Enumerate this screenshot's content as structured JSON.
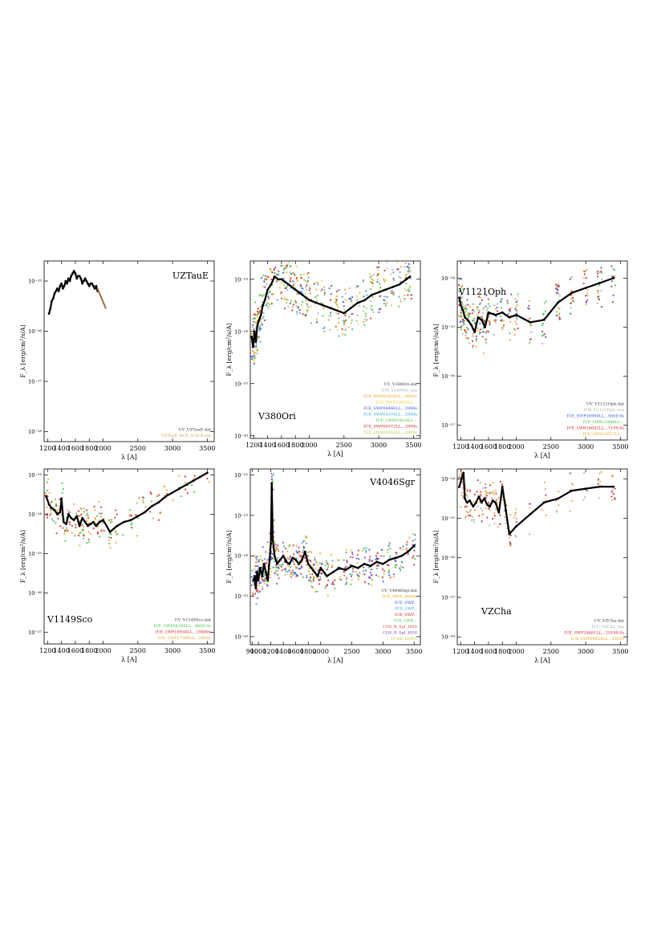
{
  "chart_data": [
    {
      "type": "line",
      "title": "UZTauE",
      "xlabel": "λ [A]",
      "ylabel": "F_λ [erg/cm²/s/A]",
      "xlim": [
        1150,
        3600
      ],
      "ylim_log10": [
        -18.2,
        -14.6
      ],
      "yscale": "log",
      "xticks": [
        1200,
        1400,
        1600,
        1800,
        2000,
        2500,
        3000,
        3500
      ],
      "yticks": [
        {
          "exp": -15,
          "label": "10⁻¹⁵"
        },
        {
          "exp": -16,
          "label": "10⁻¹⁶"
        },
        {
          "exp": -17,
          "label": "10⁻¹⁷"
        },
        {
          "exp": -18,
          "label": "10⁻¹⁸"
        }
      ],
      "legend": [
        {
          "name": "UV_UZTauE.dat",
          "color": "#333333"
        },
        {
          "name": "UZTauE_BCE_0.3CR.dat",
          "color": "#d4a24c"
        }
      ],
      "series": [
        {
          "name": "UV_UZTauE.dat",
          "color": "#000000",
          "width": 2.2,
          "x": [
            1220,
            1240,
            1260,
            1280,
            1300,
            1320,
            1340,
            1360,
            1380,
            1400,
            1420,
            1440,
            1460,
            1480,
            1500,
            1520,
            1540,
            1560,
            1580,
            1600,
            1620,
            1640,
            1660,
            1680,
            1700,
            1720,
            1740,
            1760,
            1780,
            1800,
            1820,
            1840,
            1860,
            1880,
            1900,
            1920
          ],
          "y_log10": [
            -15.65,
            -15.55,
            -15.4,
            -15.35,
            -15.25,
            -15.2,
            -15.15,
            -15.2,
            -15.1,
            -15.05,
            -15.15,
            -15.1,
            -15.0,
            -15.05,
            -14.95,
            -15.0,
            -14.9,
            -14.85,
            -14.8,
            -14.85,
            -14.95,
            -14.9,
            -14.9,
            -14.95,
            -15.05,
            -15.0,
            -14.95,
            -15.0,
            -15.05,
            -15.1,
            -15.05,
            -15.05,
            -15.1,
            -15.15,
            -15.1,
            -15.2
          ]
        },
        {
          "name": "UZTauE_BCE_0.3CR.dat",
          "color": "#a0703a",
          "width": 2.0,
          "x": [
            1920,
            1950,
            1980,
            2010,
            2040
          ],
          "y_log10": [
            -15.15,
            -15.25,
            -15.35,
            -15.45,
            -15.55
          ]
        }
      ]
    },
    {
      "type": "scatter",
      "title": "V380Ori",
      "xlabel": "λ [A]",
      "ylabel": "F_λ [erg/cm²/s/A]",
      "xlim": [
        1150,
        3600
      ],
      "ylim_log10": [
        -16.05,
        -12.65
      ],
      "yscale": "log",
      "xticks": [
        1200,
        1400,
        1600,
        1800,
        2000,
        2500,
        3000,
        3500
      ],
      "yticks": [
        {
          "exp": -13,
          "label": "10⁻¹³"
        },
        {
          "exp": -14,
          "label": "10⁻¹⁴"
        },
        {
          "exp": -15,
          "label": "10⁻¹⁵"
        },
        {
          "exp": -16,
          "label": "10⁻¹⁶"
        }
      ],
      "legend": [
        {
          "name": "UV_V380Ori.dat",
          "color": "#333333"
        },
        {
          "name": "IUE_V380Ori_xxx",
          "color": "#aaaaaa"
        },
        {
          "name": "IUE_SWP03628LL...4850s",
          "color": "#e8a020"
        },
        {
          "name": "IUE_SWP03698LL...",
          "color": "#f0d040"
        },
        {
          "name": "IUE_SWP04486LL...2999s",
          "color": "#3050d0"
        },
        {
          "name": "IUE_SWP05376LL...2999s",
          "color": "#30a0e0"
        },
        {
          "name": "IUE_LWR03614LL...",
          "color": "#40c040"
        },
        {
          "name": "IUE_SWP09372LL...2999s",
          "color": "#d02020"
        },
        {
          "name": "IUE_LWR01419LL...2999s",
          "color": "#c0c040"
        }
      ],
      "series": [
        {
          "name": "UV_V380Ori.dat",
          "color": "#000000",
          "width": 2.2,
          "x": [
            1170,
            1190,
            1210,
            1230,
            1250,
            1270,
            1300,
            1330,
            1360,
            1400,
            1450,
            1500,
            1550,
            1600,
            1650,
            1700,
            1750,
            1800,
            1850,
            1900,
            1950,
            2000,
            2100,
            2200,
            2300,
            2400,
            2500,
            2600,
            2700,
            2800,
            2900,
            3000,
            3100,
            3200,
            3300,
            3400,
            3450
          ],
          "y_log10": [
            -14.1,
            -14.3,
            -14.0,
            -14.2,
            -13.9,
            -13.8,
            -13.7,
            -13.5,
            -13.4,
            -13.2,
            -13.1,
            -12.95,
            -13.0,
            -13.0,
            -13.05,
            -13.1,
            -13.15,
            -13.2,
            -13.25,
            -13.3,
            -13.35,
            -13.4,
            -13.45,
            -13.5,
            -13.55,
            -13.6,
            -13.65,
            -13.55,
            -13.45,
            -13.4,
            -13.3,
            -13.25,
            -13.2,
            -13.15,
            -13.1,
            -13.0,
            -12.95
          ]
        }
      ]
    },
    {
      "type": "scatter",
      "title": "V1121Oph",
      "xlabel": "λ [A]",
      "ylabel": "F_λ [erg/cm²/s/A]",
      "xlim": [
        1150,
        3600
      ],
      "ylim_log10": [
        -17.3,
        -13.65
      ],
      "yscale": "log",
      "xticks": [
        1200,
        1400,
        1600,
        1800,
        2000,
        2500,
        3000,
        3500
      ],
      "yticks": [
        {
          "exp": -14,
          "label": "10⁻¹⁴"
        },
        {
          "exp": -15,
          "label": "10⁻¹⁵"
        },
        {
          "exp": -16,
          "label": "10⁻¹⁶"
        },
        {
          "exp": -17,
          "label": "10⁻¹⁷"
        }
      ],
      "legend": [
        {
          "name": "UV_V1121Oph.dat",
          "color": "#333333"
        },
        {
          "name": "IUE_V1121Oph_xxx",
          "color": "#aaaaaa"
        },
        {
          "name": "IUE_SWP16990LL...5659.0s",
          "color": "#3050d0"
        },
        {
          "name": "IUE_LWR13486LL...",
          "color": "#40c040"
        },
        {
          "name": "IUE_LWR16642LL...7199.0s",
          "color": "#d02020"
        },
        {
          "name": "IUE_LWR13557LL...",
          "color": "#e8a020"
        }
      ],
      "series": [
        {
          "name": "UV_V1121Oph.dat",
          "color": "#000000",
          "width": 2.2,
          "x": [
            1180,
            1200,
            1230,
            1260,
            1300,
            1350,
            1400,
            1450,
            1500,
            1550,
            1600,
            1700,
            1800,
            1900,
            2000,
            2200,
            2400,
            2600,
            2800,
            3000,
            3200,
            3400
          ],
          "y_log10": [
            -14.4,
            -14.55,
            -14.65,
            -14.8,
            -14.85,
            -14.95,
            -15.1,
            -14.8,
            -14.85,
            -15.0,
            -14.7,
            -14.75,
            -14.7,
            -14.8,
            -14.75,
            -14.9,
            -14.85,
            -14.5,
            -14.3,
            -14.2,
            -14.1,
            -14.0
          ]
        }
      ]
    },
    {
      "type": "scatter",
      "title": "V1149Sco",
      "xlabel": "λ [A]",
      "ylabel": "F_λ [erg/cm²/s/A]",
      "xlim": [
        1150,
        3600
      ],
      "ylim_log10": [
        -17.3,
        -12.85
      ],
      "yscale": "log",
      "xticks": [
        1200,
        1400,
        1600,
        1800,
        2000,
        2500,
        3000,
        3500
      ],
      "yticks": [
        {
          "exp": -13,
          "label": "10⁻¹³"
        },
        {
          "exp": -14,
          "label": "10⁻¹⁴"
        },
        {
          "exp": -15,
          "label": "10⁻¹⁵"
        },
        {
          "exp": -16,
          "label": "10⁻¹⁶"
        },
        {
          "exp": -17,
          "label": "10⁻¹⁷"
        }
      ],
      "legend": [
        {
          "name": "UV_V1149Sco.dat",
          "color": "#333333"
        },
        {
          "name": "IUE_SWP04295LL...9600.0s",
          "color": "#40c040"
        },
        {
          "name": "IUE_LWP19858LL...10800s",
          "color": "#d02020"
        },
        {
          "name": "IUE_LWP27289LL...2400s",
          "color": "#e8a020"
        }
      ],
      "series": [
        {
          "name": "UV_V1149Sco.dat",
          "color": "#000000",
          "width": 2.2,
          "x": [
            1180,
            1220,
            1260,
            1300,
            1340,
            1380,
            1400,
            1430,
            1470,
            1500,
            1540,
            1580,
            1620,
            1660,
            1700,
            1740,
            1780,
            1820,
            1860,
            1900,
            1950,
            2000,
            2100,
            2200,
            2300,
            2400,
            2500,
            2600,
            2700,
            2800,
            2900,
            3000,
            3100,
            3200,
            3300,
            3400,
            3500
          ],
          "y_log10": [
            -13.55,
            -13.75,
            -13.85,
            -13.9,
            -14.0,
            -13.95,
            -13.6,
            -14.2,
            -14.25,
            -14.0,
            -14.1,
            -14.15,
            -14.05,
            -14.3,
            -14.1,
            -14.2,
            -14.3,
            -14.25,
            -14.2,
            -14.3,
            -14.2,
            -14.15,
            -14.45,
            -14.3,
            -14.2,
            -14.15,
            -14.05,
            -13.95,
            -13.8,
            -13.7,
            -13.55,
            -13.45,
            -13.35,
            -13.25,
            -13.15,
            -13.05,
            -12.95
          ]
        }
      ]
    },
    {
      "type": "scatter",
      "title": "V4046Sgr",
      "xlabel": "λ [A]",
      "ylabel": "F_λ [erg/cm²/s/A]",
      "xlim": [
        870,
        3600
      ],
      "ylim_log10": [
        -16.2,
        -11.85
      ],
      "yscale": "log",
      "xticks": [
        900,
        1000,
        1200,
        1400,
        1600,
        1800,
        2000,
        2500,
        3000,
        3500
      ],
      "yticks": [
        {
          "exp": -12,
          "label": "10⁻¹²"
        },
        {
          "exp": -13,
          "label": "10⁻¹³"
        },
        {
          "exp": -14,
          "label": "10⁻¹⁴"
        },
        {
          "exp": -15,
          "label": "10⁻¹⁵"
        },
        {
          "exp": -16,
          "label": "10⁻¹⁶"
        }
      ],
      "legend": [
        {
          "name": "UV_V4046Sgr.dat",
          "color": "#333333"
        },
        {
          "name": "IUE_SWP...4000s",
          "color": "#e8a020"
        },
        {
          "name": "IUE_SWP...",
          "color": "#3050d0"
        },
        {
          "name": "IUE_LWP...",
          "color": "#30a0e0"
        },
        {
          "name": "IUE_SWP...",
          "color": "#d02020"
        },
        {
          "name": "IUE_LWR...",
          "color": "#40c040"
        },
        {
          "name": "COS_B_SpI_HDS",
          "color": "#e04040"
        },
        {
          "name": "COS_B_SpI_HDS",
          "color": "#8040c0"
        },
        {
          "name": "FUSE_LWRS",
          "color": "#c0c040"
        }
      ],
      "series": [
        {
          "name": "UV_V4046Sgr.dat",
          "color": "#000000",
          "width": 2.2,
          "x": [
            920,
            940,
            960,
            980,
            1000,
            1030,
            1060,
            1090,
            1120,
            1150,
            1180,
            1200,
            1215,
            1230,
            1260,
            1300,
            1350,
            1400,
            1450,
            1500,
            1550,
            1600,
            1650,
            1700,
            1750,
            1800,
            1850,
            1900,
            1950,
            2000,
            2100,
            2200,
            2300,
            2400,
            2500,
            2600,
            2700,
            2800,
            2900,
            3000,
            3100,
            3200,
            3300,
            3400,
            3500
          ],
          "y_log10": [
            -14.6,
            -14.5,
            -14.8,
            -14.4,
            -14.6,
            -14.3,
            -14.5,
            -14.2,
            -14.4,
            -14.6,
            -14.1,
            -13.7,
            -12.2,
            -13.6,
            -14.0,
            -14.2,
            -14.1,
            -14.0,
            -14.15,
            -14.2,
            -14.05,
            -14.1,
            -14.2,
            -14.1,
            -13.9,
            -14.2,
            -14.3,
            -14.4,
            -14.5,
            -14.3,
            -14.5,
            -14.4,
            -14.3,
            -14.35,
            -14.25,
            -14.3,
            -14.2,
            -14.25,
            -14.15,
            -14.2,
            -14.1,
            -14.05,
            -14.0,
            -13.9,
            -13.75
          ]
        }
      ]
    },
    {
      "type": "scatter",
      "title": "VZCha",
      "xlabel": "λ [A]",
      "ylabel": "F_λ [erg/cm²/s/A]",
      "xlim": [
        1150,
        3600
      ],
      "ylim_log10": [
        -18.2,
        -13.75
      ],
      "yscale": "log",
      "xticks": [
        1200,
        1400,
        1600,
        1800,
        2000,
        2500,
        3000,
        3500
      ],
      "yticks": [
        {
          "exp": -14,
          "label": "10⁻¹⁴"
        },
        {
          "exp": -15,
          "label": "10⁻¹⁵"
        },
        {
          "exp": -16,
          "label": "10⁻¹⁶"
        },
        {
          "exp": -17,
          "label": "10⁻¹⁷"
        },
        {
          "exp": -18,
          "label": "10⁻¹⁸"
        }
      ],
      "legend": [
        {
          "name": "UV_VZCha.dat",
          "color": "#333333"
        },
        {
          "name": "IUE_VZCha_xxx",
          "color": "#aaaaaa"
        },
        {
          "name": "IUE_SWP24681LL...25199.0s",
          "color": "#d02020"
        },
        {
          "name": "IUE_LWP04854LL...1500s",
          "color": "#e8a020"
        }
      ],
      "series": [
        {
          "name": "UV_VZCha.dat",
          "color": "#000000",
          "width": 2.2,
          "x": [
            1180,
            1210,
            1240,
            1260,
            1290,
            1330,
            1380,
            1420,
            1460,
            1500,
            1540,
            1580,
            1620,
            1660,
            1700,
            1750,
            1800,
            1850,
            1900,
            2000,
            2200,
            2400,
            2600,
            2800,
            3000,
            3200,
            3400
          ],
          "y_log10": [
            -14.2,
            -14.0,
            -13.85,
            -14.5,
            -14.6,
            -14.55,
            -14.7,
            -14.6,
            -14.45,
            -14.6,
            -14.5,
            -14.65,
            -14.7,
            -14.55,
            -14.6,
            -14.85,
            -14.2,
            -14.8,
            -15.4,
            -15.2,
            -14.9,
            -14.6,
            -14.5,
            -14.3,
            -14.25,
            -14.2,
            -14.2
          ]
        }
      ]
    }
  ]
}
